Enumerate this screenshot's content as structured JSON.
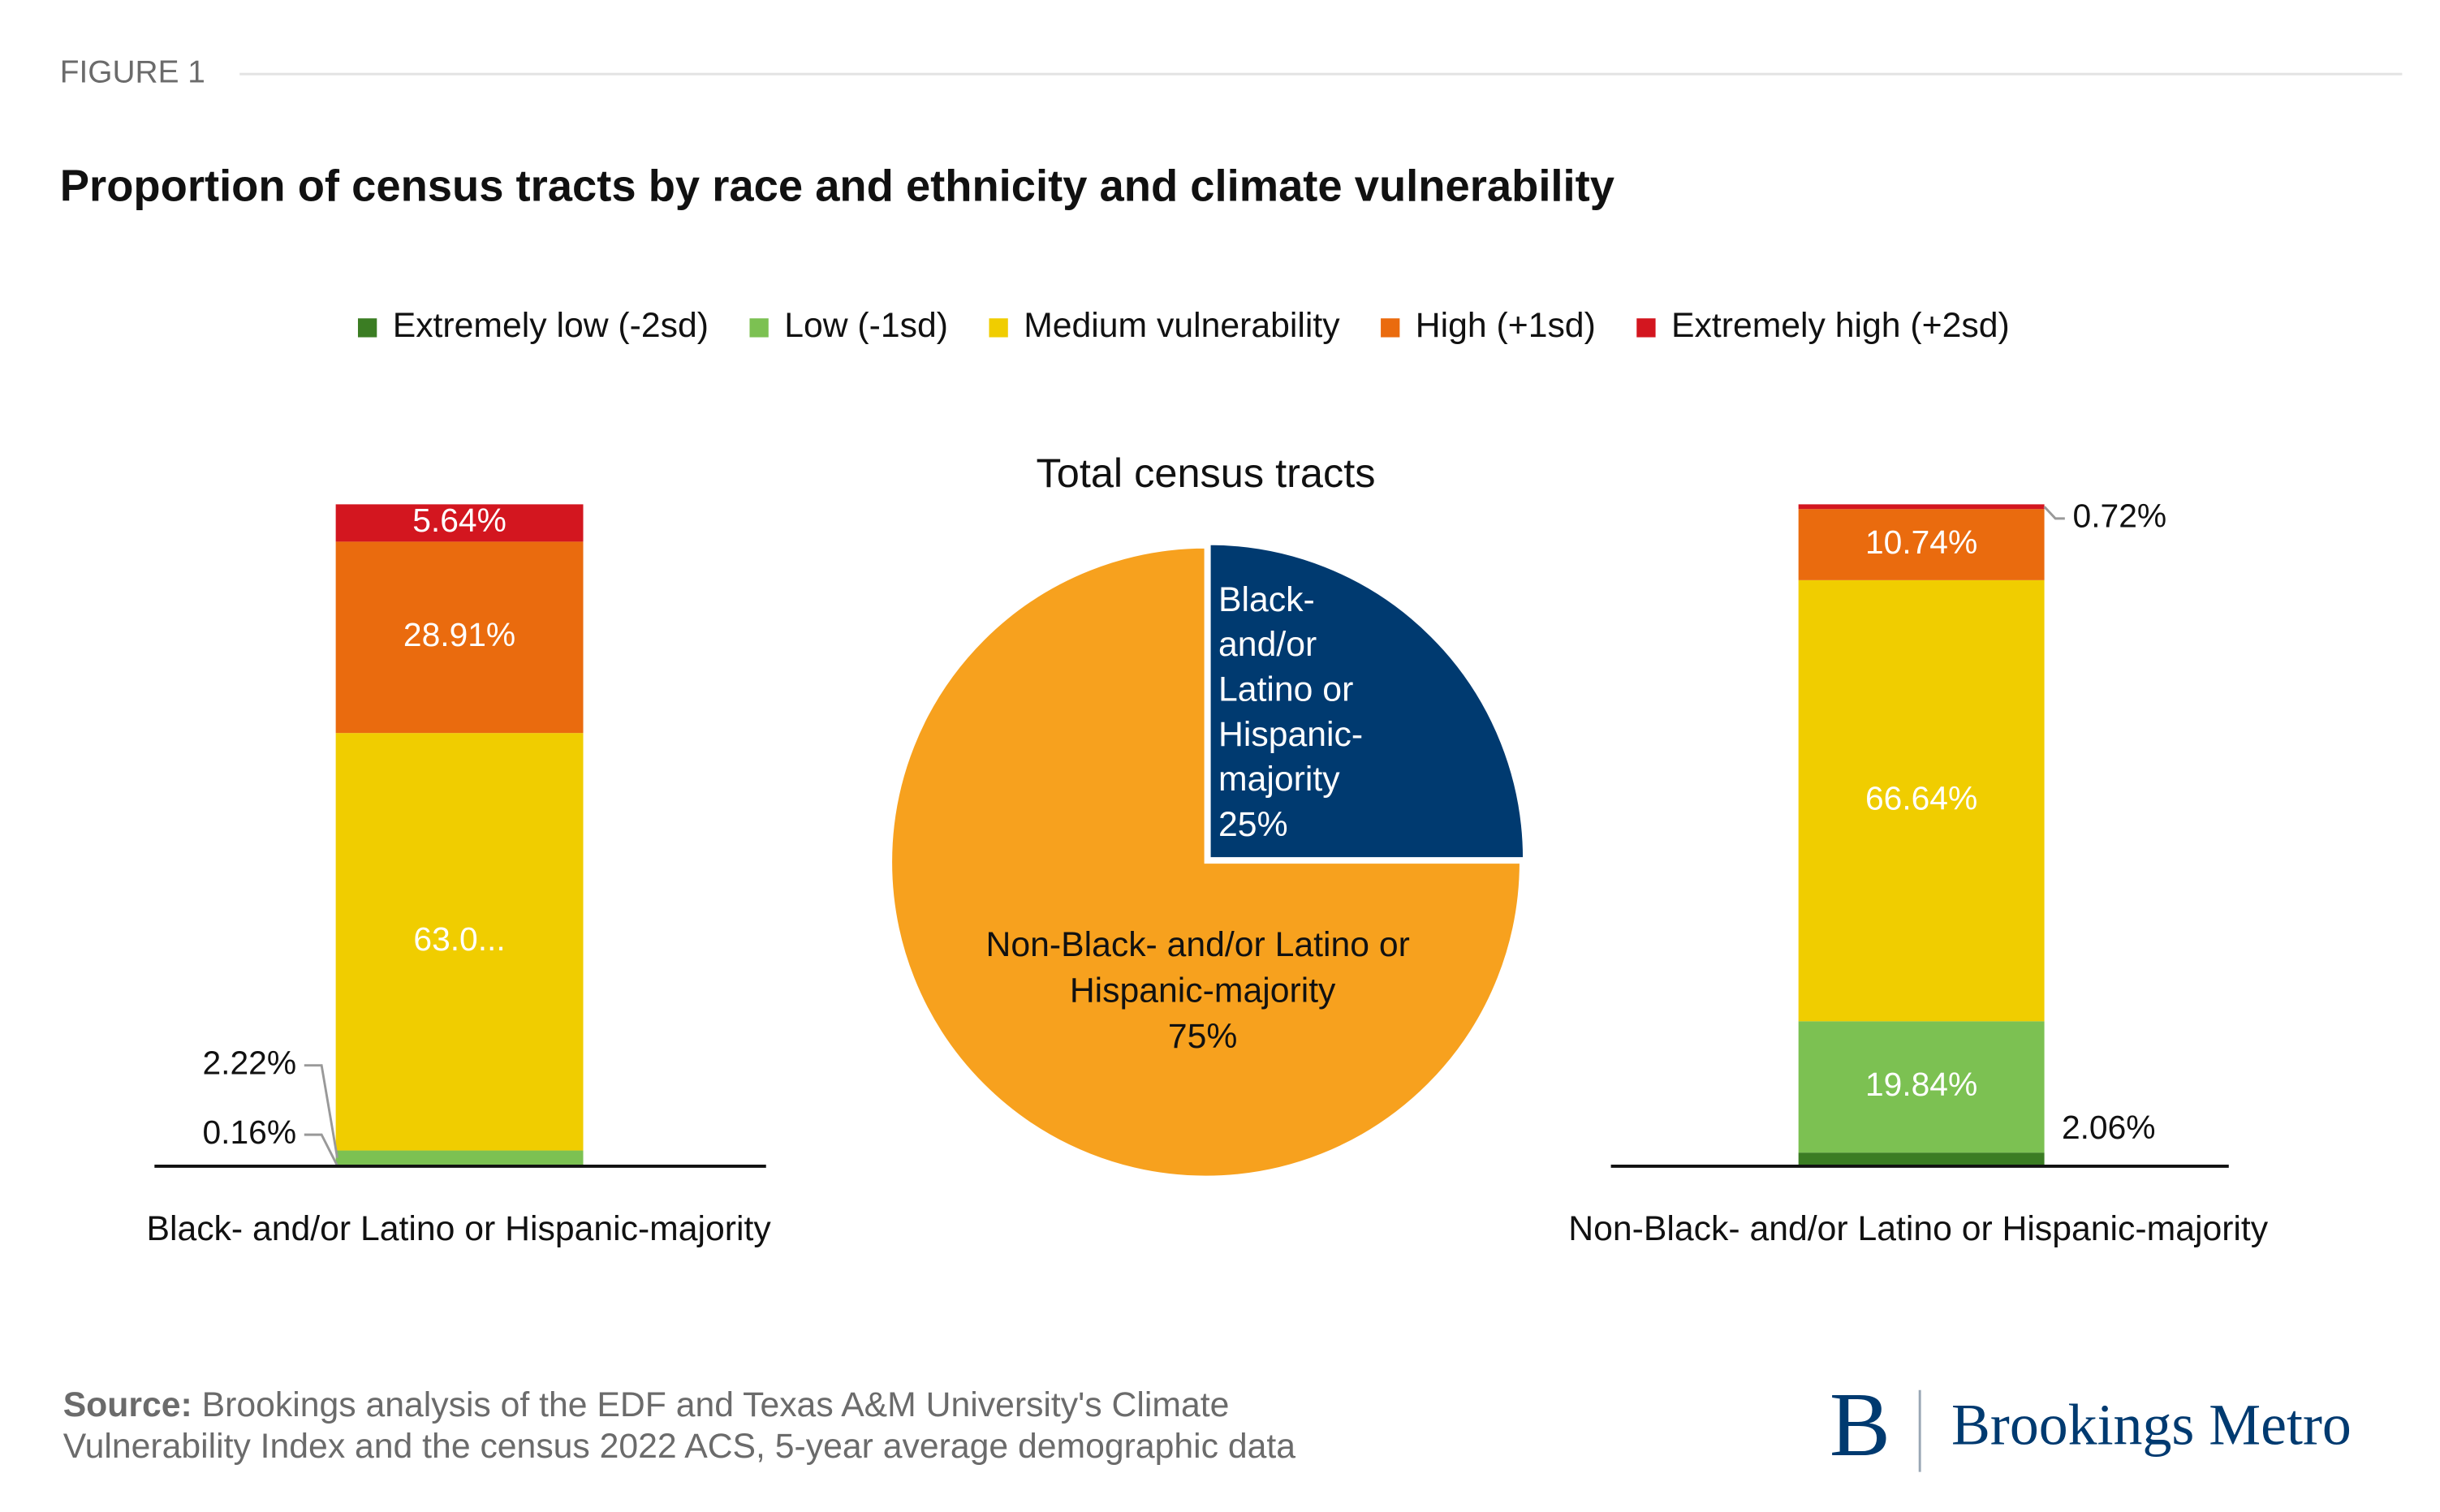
{
  "figure_label": "FIGURE 1",
  "title": "Proportion of census tracts by race and ethnicity and climate vulnerability",
  "source": {
    "label": "Source:",
    "lines": [
      "Brookings analysis of the EDF and Texas A&M University's Climate",
      "Vulnerability Index and the census 2022 ACS, 5-year average demographic data"
    ]
  },
  "logo": {
    "mark": "B",
    "text": "Brookings Metro"
  },
  "chart_data": [
    {
      "type": "stacked_bar",
      "categories": [
        "Black- and/or Latino or Hispanic-majority"
      ],
      "ylim": [
        0,
        100
      ],
      "series": [
        {
          "name": "Extremely low (-2sd)",
          "color": "#3b7d23",
          "values": [
            0.16
          ],
          "value_labels": [
            "0.16%"
          ]
        },
        {
          "name": "Low (-1sd)",
          "color": "#7cc152",
          "values": [
            2.22
          ],
          "value_labels": [
            "2.22%"
          ]
        },
        {
          "name": "Medium vulnerability",
          "color": "#f0cd00",
          "values": [
            63.07
          ],
          "value_labels": [
            "63.0..."
          ]
        },
        {
          "name": "High (+1sd)",
          "color": "#ea6b0e",
          "values": [
            28.91
          ],
          "value_labels": [
            "28.91%"
          ]
        },
        {
          "name": "Extremely high (+2sd)",
          "color": "#d3161f",
          "values": [
            5.64
          ],
          "value_labels": [
            "5.64%"
          ]
        }
      ]
    },
    {
      "type": "pie",
      "title": "Total census tracts",
      "categories": [
        "Black- and/or Latino or Hispanic-majority",
        "Non-Black- and/or Latino or Hispanic-majority"
      ],
      "values": [
        25,
        75
      ],
      "value_labels": [
        "25%",
        "75%"
      ],
      "colors": [
        "#003a70",
        "#f7a11e"
      ]
    },
    {
      "type": "stacked_bar",
      "categories": [
        "Non-Black- and/or Latino or Hispanic-majority"
      ],
      "ylim": [
        0,
        100
      ],
      "series": [
        {
          "color": "#3b7d23",
          "values": [
            2.06
          ],
          "value_labels": [
            "2.06%"
          ]
        },
        {
          "color": "#7cc152",
          "values": [
            19.84
          ],
          "value_labels": [
            "19.84%"
          ]
        },
        {
          "color": "#f0cd00",
          "values": [
            66.64
          ],
          "value_labels": [
            "66.64%"
          ]
        },
        {
          "color": "#ea6b0e",
          "values": [
            10.74
          ],
          "value_labels": [
            "10.74%"
          ]
        },
        {
          "color": "#d3161f",
          "values": [
            0.72
          ],
          "value_labels": [
            "0.72%"
          ]
        }
      ]
    }
  ]
}
